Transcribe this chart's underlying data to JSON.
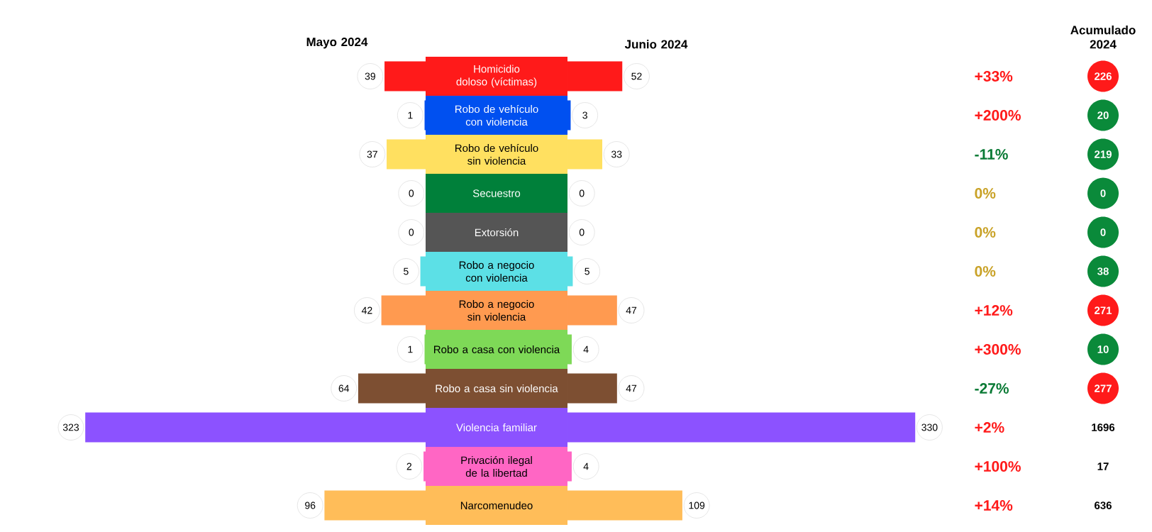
{
  "chart_data": [
    {
      "type": "bar",
      "orientation": "horizontal",
      "data_labels": true,
      "title": "Mayo 2024",
      "categories": [
        "Homicidio doloso (víctimas)",
        "Robo de vehículo con violencia",
        "Robo de vehículo sin violencia",
        "Secuestro",
        "Extorsión",
        "Robo a negocio con violencia",
        "Robo a negocio sin violencia",
        "Robo a casa con violencia",
        "Robo a casa sin violencia",
        "Violencia familiar",
        "Privación ilegal de la libertad",
        "Narcomenudeo"
      ],
      "colors": [
        "#ff1a1a",
        "#0050f0",
        "#ffe060",
        "#00803a",
        "#555555",
        "#5ce0e6",
        "#ff9a50",
        "#7ed957",
        "#7d4f32",
        "#8c52ff",
        "#ff66c4",
        "#ffbd59"
      ],
      "values": [
        39,
        1,
        37,
        0,
        0,
        5,
        42,
        1,
        64,
        323,
        2,
        96
      ]
    },
    {
      "type": "bar",
      "orientation": "horizontal",
      "data_labels": true,
      "title": "Junio 2024",
      "categories": [
        null,
        null,
        null,
        null,
        null,
        null,
        null,
        null,
        null,
        null,
        null,
        null
      ],
      "colors": [
        "#ff1a1a",
        "#0050f0",
        "#ffe060",
        "#00803a",
        "#555555",
        "#5ce0e6",
        "#ff9a50",
        "#7ed957",
        "#7d4f32",
        "#8c52ff",
        "#ff66c4",
        "#ffbd59"
      ],
      "values": [
        52,
        3,
        33,
        0,
        0,
        5,
        47,
        4,
        47,
        330,
        4,
        109
      ]
    },
    {
      "type": "other",
      "values": [
        33,
        200,
        -11,
        0,
        0,
        0,
        12,
        300,
        -27,
        2,
        100,
        14
      ],
      "value_labels": [
        "+33%",
        "+200%",
        "-11%",
        "0%",
        "0%",
        "0%",
        "+12%",
        "+300%",
        "-27%",
        "+2%",
        "+100%",
        "+14%"
      ],
      "colors": [
        "#ff1a1a",
        "#ff1a1a",
        "#0a7a35",
        "#c9a227",
        "#c9a227",
        "#c9a227",
        "#ff1a1a",
        "#ff1a1a",
        "#0a7a35",
        "#ff1a1a",
        "#ff1a1a",
        "#ff1a1a"
      ]
    },
    {
      "type": "other",
      "title": "Acumulado 2024",
      "data_labels": true,
      "values": [
        226,
        20,
        219,
        0,
        0,
        38,
        271,
        10,
        277,
        1696,
        17,
        636
      ],
      "colors": [
        "#ff1a1a",
        "#0a8a3a",
        "#0a8a3a",
        "#0a8a3a",
        "#0a8a3a",
        "#0a8a3a",
        "#ff1a1a",
        "#0a8a3a",
        "#ff1a1a",
        "#ffffff",
        "#ffffff",
        "#ffffff"
      ]
    }
  ]
}
